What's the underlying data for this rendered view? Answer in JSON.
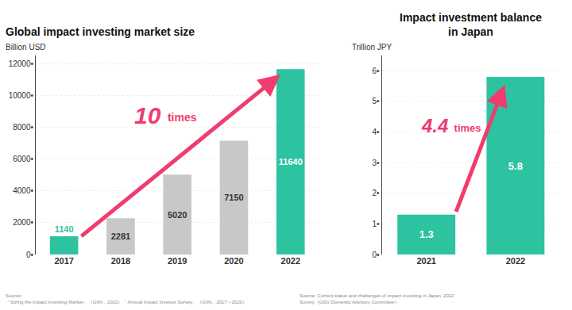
{
  "chart_data": [
    {
      "type": "bar",
      "title": "Global impact investing market size",
      "ylabel": "Billion USD",
      "categories": [
        "2017",
        "2018",
        "2019",
        "2020",
        "2022"
      ],
      "values": [
        1140,
        2281,
        5020,
        7150,
        11640
      ],
      "colors": [
        "#2DC3A0",
        "#C8C8C8",
        "#C8C8C8",
        "#C8C8C8",
        "#2DC3A0"
      ],
      "label_colors": [
        "#2DC3A0",
        "#333333",
        "#333333",
        "#333333",
        "#ffffff"
      ],
      "ylim": [
        0,
        12500
      ],
      "yticks": [
        {
          "value": 0,
          "label": "0•"
        },
        {
          "value": 2000,
          "label": "2000•"
        },
        {
          "value": 4000,
          "label": "4000•"
        },
        {
          "value": 6000,
          "label": "6000•"
        },
        {
          "value": 8000,
          "label": "8000•"
        },
        {
          "value": 10000,
          "label": "10000•"
        },
        {
          "value": 12000,
          "label": "12000•"
        }
      ],
      "grid": true,
      "data_labels": true,
      "annotations": [
        "10",
        " times"
      ],
      "annotation_color": "#F03C6E",
      "source": "Source:\n『Sizing the Impact Investing Market』（GIIN，2022）『Annual Impact Investor Survey』（GIIN，2017～2020）"
    },
    {
      "type": "bar",
      "title": "Impact investment balance\nin Japan",
      "ylabel": "Trillion JPY",
      "categories": [
        "2021",
        "2022"
      ],
      "values": [
        1.3,
        5.8
      ],
      "colors": [
        "#2DC3A0",
        "#2DC3A0"
      ],
      "label_colors": [
        "#ffffff",
        "#ffffff"
      ],
      "ylim": [
        0,
        6.5
      ],
      "yticks": [
        {
          "value": 0,
          "label": "0•"
        },
        {
          "value": 1,
          "label": "1•"
        },
        {
          "value": 2,
          "label": "2•"
        },
        {
          "value": 3,
          "label": "3•"
        },
        {
          "value": 4,
          "label": "4•"
        },
        {
          "value": 5,
          "label": "5•"
        },
        {
          "value": 6,
          "label": "6•"
        }
      ],
      "grid": true,
      "data_labels": true,
      "annotations": [
        "4.4",
        " times"
      ],
      "annotation_color": "#F03C6E",
      "source": "Source: Current status and challenges of impact investing in Japan, 2022\nSurvey（GSG Domestic Advisory Committee）"
    }
  ]
}
